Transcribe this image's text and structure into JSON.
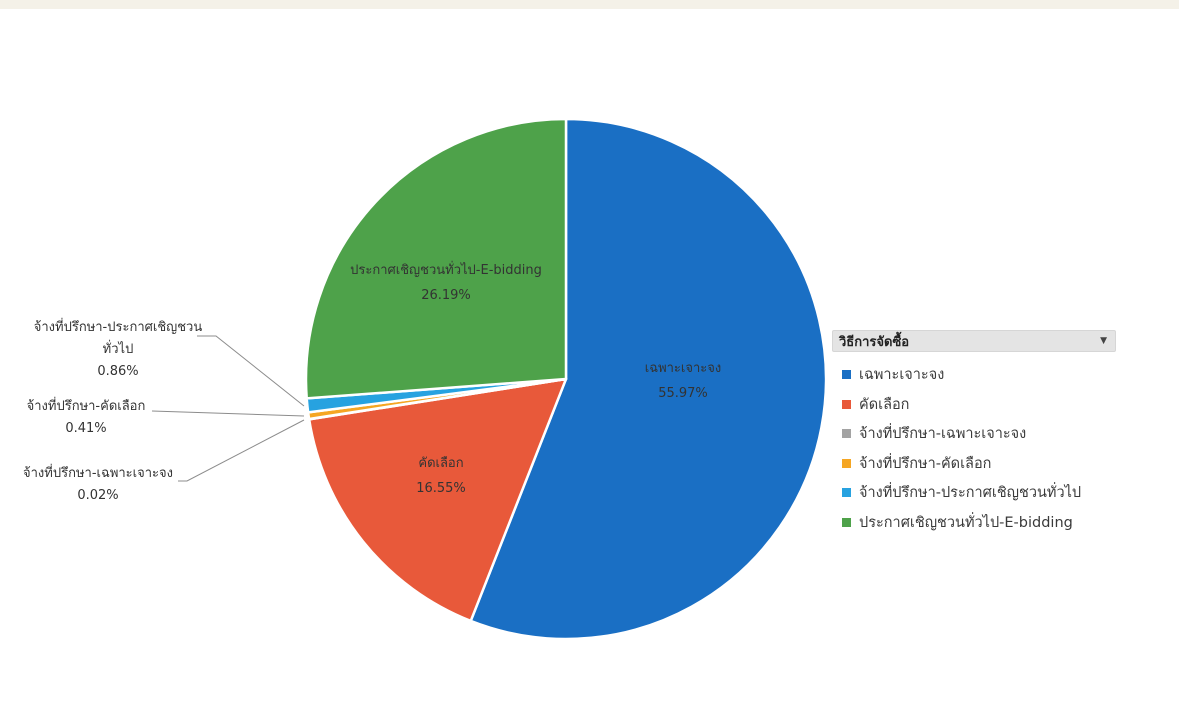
{
  "chart_data": {
    "type": "pie",
    "slices": [
      {
        "label": "เฉพาะเจาะจง",
        "value": 55.97,
        "value_label": "55.97%",
        "color": "#1a6fc4"
      },
      {
        "label": "คัดเลือก",
        "value": 16.55,
        "value_label": "16.55%",
        "color": "#e8593a"
      },
      {
        "label": "จ้างที่ปรึกษา-เฉพาะเจาะจง",
        "value": 0.02,
        "value_label": "0.02%",
        "color": "#a3a3a3"
      },
      {
        "label": "จ้างที่ปรึกษา-คัดเลือก",
        "value": 0.41,
        "value_label": "0.41%",
        "color": "#f5a623"
      },
      {
        "label": "จ้างที่ปรึกษา-ประกาศเชิญชวนทั่วไป",
        "value": 0.86,
        "value_label": "0.86%",
        "color": "#27a2e0"
      },
      {
        "label": "ประกาศเชิญชวนทั่วไป-E-bidding",
        "value": 26.19,
        "value_label": "26.19%",
        "color": "#4ea24a"
      }
    ],
    "external_label_lines": {
      "consult_general": [
        "จ้างที่ปรึกษา-ประกาศเชิญชวน",
        "ทั่วไป"
      ]
    },
    "legend": {
      "title": "วิธีการจัดซื้อ",
      "dropdown_icon": "chevron-down-icon",
      "placement": "right"
    }
  }
}
